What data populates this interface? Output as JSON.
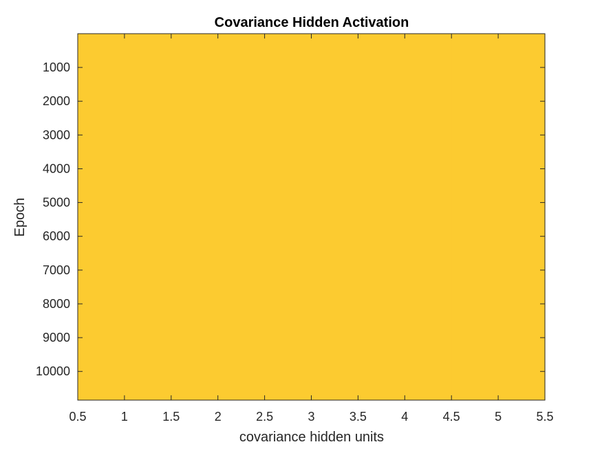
{
  "chart_data": {
    "type": "heatmap",
    "title": "Covariance Hidden Activation",
    "xlabel": "covariance hidden units",
    "ylabel": "Epoch",
    "xlim": [
      0.5,
      5.5
    ],
    "ylim": [
      1,
      10850
    ],
    "y_direction": "reversed",
    "x_ticks": [
      0.5,
      1,
      1.5,
      2,
      2.5,
      3,
      3.5,
      4,
      4.5,
      5,
      5.5
    ],
    "x_tick_labels": [
      "0.5",
      "1",
      "1.5",
      "2",
      "2.5",
      "3",
      "3.5",
      "4",
      "4.5",
      "5",
      "5.5"
    ],
    "y_ticks": [
      1000,
      2000,
      3000,
      4000,
      5000,
      6000,
      7000,
      8000,
      9000,
      10000
    ],
    "y_tick_labels": [
      "1000",
      "2000",
      "3000",
      "4000",
      "5000",
      "6000",
      "7000",
      "8000",
      "9000",
      "10000"
    ],
    "columns": [
      1,
      2,
      3,
      4,
      5
    ],
    "cell_color": "#fccb30",
    "note_values": "uniform color across all units and epochs",
    "grid": false,
    "legend": "none"
  }
}
